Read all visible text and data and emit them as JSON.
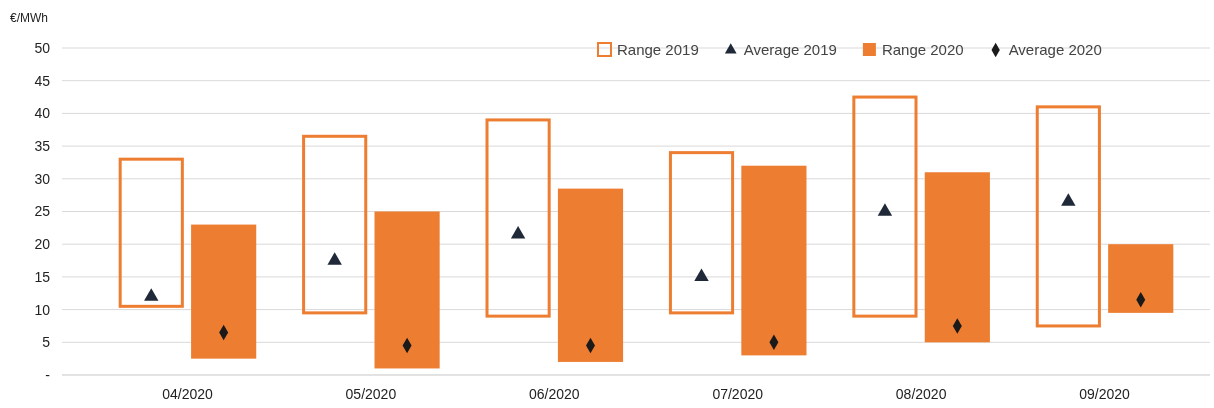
{
  "chart_data": {
    "type": "bar",
    "ylabel": "€/MWh",
    "categories": [
      "04/2020",
      "05/2020",
      "06/2020",
      "07/2020",
      "08/2020",
      "09/2020"
    ],
    "ylim": [
      0,
      50
    ],
    "yticks": [
      {
        "value": 0,
        "label": "-"
      },
      5,
      10,
      15,
      20,
      25,
      30,
      35,
      40,
      45,
      50
    ],
    "grid": "y",
    "legend": "top right",
    "series": [
      {
        "name": "Range 2019",
        "type": "bar",
        "color": "#ed7d31",
        "base": [
          10.5,
          9.5,
          9,
          9.5,
          9,
          7.5
        ],
        "values": [
          22.5,
          27,
          30,
          24.5,
          33.5,
          33.5
        ]
      },
      {
        "name": "Average 2019",
        "type": "scatter",
        "marker": "triangle",
        "color": "#1f2937",
        "values": [
          12,
          17.5,
          21.5,
          15,
          25,
          26.5
        ]
      },
      {
        "name": "Range 2020",
        "type": "bar",
        "color": "#ed7d31",
        "base": [
          2.5,
          1,
          2,
          3,
          5,
          9.5
        ],
        "values": [
          20.5,
          24,
          26.5,
          29,
          26,
          10.5
        ]
      },
      {
        "name": "Average 2020",
        "type": "scatter",
        "marker": "diamond",
        "color": "#1a1a1a",
        "values": [
          6.5,
          4.5,
          4.5,
          5,
          7.5,
          11.5
        ]
      }
    ]
  }
}
